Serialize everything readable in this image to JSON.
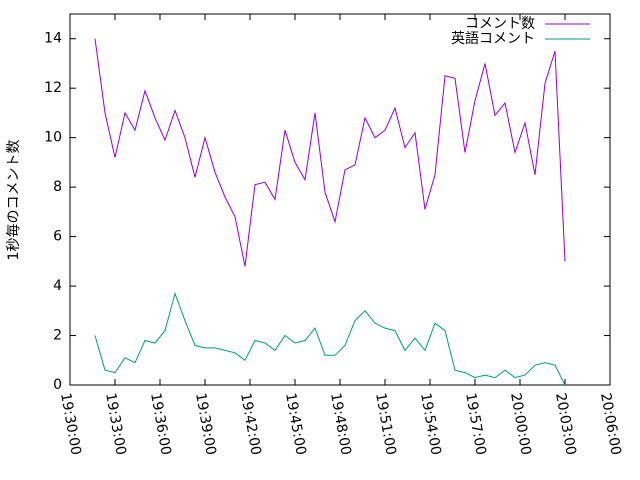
{
  "chart_data": {
    "type": "line",
    "y_label": "1秒毎のコメント数",
    "x": [
      "19:31:40",
      "19:32:20",
      "19:33:00",
      "19:33:40",
      "19:34:20",
      "19:35:00",
      "19:35:40",
      "19:36:20",
      "19:37:00",
      "19:37:40",
      "19:38:20",
      "19:39:00",
      "19:39:40",
      "19:40:20",
      "19:41:00",
      "19:41:40",
      "19:42:20",
      "19:43:00",
      "19:43:40",
      "19:44:20",
      "19:45:00",
      "19:45:40",
      "19:46:20",
      "19:47:00",
      "19:47:40",
      "19:48:20",
      "19:49:00",
      "19:49:40",
      "19:50:20",
      "19:51:00",
      "19:51:40",
      "19:52:20",
      "19:53:00",
      "19:53:40",
      "19:54:20",
      "19:55:00",
      "19:55:40",
      "19:56:20",
      "19:57:00",
      "19:57:40",
      "19:58:20",
      "19:59:00",
      "19:59:40",
      "20:00:20",
      "20:01:00",
      "20:01:40",
      "20:02:20",
      "20:03:00"
    ],
    "series": [
      {
        "name": "コメント数",
        "color": "#9400d3",
        "values": [
          14,
          11,
          9.2,
          11,
          10.3,
          11.9,
          10.8,
          9.9,
          11.1,
          10.0,
          8.4,
          10.0,
          8.6,
          7.6,
          6.8,
          4.8,
          8.1,
          8.2,
          7.5,
          10.3,
          9.0,
          8.3,
          11.0,
          7.8,
          6.6,
          8.7,
          8.9,
          10.8,
          10.0,
          10.3,
          11.2,
          9.6,
          10.2,
          7.1,
          8.5,
          12.5,
          12.4,
          9.4,
          11.5,
          13.0,
          10.9,
          11.4,
          9.4,
          10.6,
          8.5,
          12.2,
          13.5,
          5
        ]
      },
      {
        "name": "英語コメント",
        "color": "#009e73",
        "values": [
          2.0,
          0.6,
          0.5,
          1.1,
          0.9,
          1.8,
          1.7,
          2.2,
          3.7,
          2.6,
          1.6,
          1.5,
          1.5,
          1.4,
          1.3,
          1.0,
          1.8,
          1.7,
          1.4,
          2.0,
          1.7,
          1.8,
          2.3,
          1.2,
          1.2,
          1.6,
          2.6,
          3.0,
          2.5,
          2.3,
          2.2,
          1.4,
          1.9,
          1.4,
          2.5,
          2.2,
          0.6,
          0.5,
          0.3,
          0.4,
          0.3,
          0.6,
          0.3,
          0.4,
          0.8,
          0.9,
          0.8,
          0
        ]
      }
    ],
    "xlim": [
      "19:30:00",
      "20:06:00"
    ],
    "xticks": [
      "19:30:00",
      "19:33:00",
      "19:36:00",
      "19:39:00",
      "19:42:00",
      "19:45:00",
      "19:48:00",
      "19:51:00",
      "19:54:00",
      "19:57:00",
      "20:00:00",
      "20:03:00",
      "20:06:00"
    ],
    "ylim": [
      0,
      15
    ],
    "yticks": [
      0,
      2,
      4,
      6,
      8,
      10,
      12,
      14
    ],
    "legend": "top-right"
  }
}
